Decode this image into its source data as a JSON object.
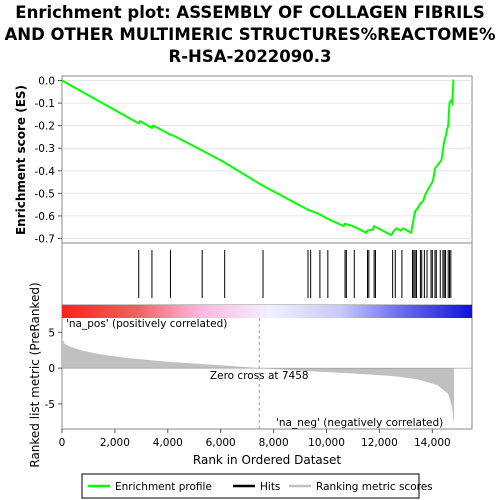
{
  "title_lines": [
    "Enrichment plot: ASSEMBLY OF COLLAGEN FIBRILS",
    "AND OTHER MULTIMERIC STRUCTURES%REACTOME%",
    "R-HSA-2022090.3"
  ],
  "chart_data": {
    "type": "line",
    "es_panel": {
      "ylabel": "Enrichment score (ES)",
      "yticks": [
        "0.0",
        "-0.1",
        "-0.2",
        "-0.3",
        "-0.4",
        "-0.5",
        "-0.6",
        "-0.7"
      ],
      "ylim": [
        -0.72,
        0.02
      ],
      "series_name": "Enrichment profile",
      "color": "#00ff00",
      "points": [
        [
          0,
          0.0
        ],
        [
          2900,
          -0.19
        ],
        [
          2950,
          -0.18
        ],
        [
          3400,
          -0.21
        ],
        [
          3450,
          -0.2
        ],
        [
          4100,
          -0.24
        ],
        [
          4150,
          -0.24
        ],
        [
          5300,
          -0.31
        ],
        [
          6100,
          -0.36
        ],
        [
          7500,
          -0.46
        ],
        [
          9250,
          -0.57
        ],
        [
          9350,
          -0.575
        ],
        [
          9700,
          -0.59
        ],
        [
          10000,
          -0.61
        ],
        [
          10650,
          -0.645
        ],
        [
          10700,
          -0.635
        ],
        [
          11000,
          -0.645
        ],
        [
          11500,
          -0.675
        ],
        [
          11550,
          -0.665
        ],
        [
          11750,
          -0.66
        ],
        [
          11800,
          -0.645
        ],
        [
          12450,
          -0.685
        ],
        [
          12550,
          -0.665
        ],
        [
          12650,
          -0.655
        ],
        [
          12800,
          -0.665
        ],
        [
          12900,
          -0.655
        ],
        [
          13200,
          -0.675
        ],
        [
          13250,
          -0.64
        ],
        [
          13300,
          -0.61
        ],
        [
          13350,
          -0.58
        ],
        [
          13450,
          -0.565
        ],
        [
          13550,
          -0.545
        ],
        [
          13650,
          -0.535
        ],
        [
          13750,
          -0.5
        ],
        [
          13900,
          -0.47
        ],
        [
          14000,
          -0.45
        ],
        [
          14050,
          -0.43
        ],
        [
          14100,
          -0.39
        ],
        [
          14200,
          -0.375
        ],
        [
          14300,
          -0.36
        ],
        [
          14350,
          -0.35
        ],
        [
          14400,
          -0.31
        ],
        [
          14450,
          -0.27
        ],
        [
          14500,
          -0.25
        ],
        [
          14550,
          -0.22
        ],
        [
          14600,
          -0.2
        ],
        [
          14650,
          -0.1
        ],
        [
          14700,
          -0.09
        ],
        [
          14750,
          -0.1
        ],
        [
          14800,
          0.0
        ],
        [
          14820,
          0.0
        ]
      ]
    },
    "hits": [
      2900,
      3400,
      4100,
      5300,
      6150,
      7600,
      9300,
      9400,
      9750,
      10050,
      10700,
      10750,
      11050,
      11550,
      11600,
      11800,
      11850,
      12500,
      12600,
      12850,
      13250,
      13300,
      13350,
      13400,
      13550,
      13600,
      13700,
      13800,
      13950,
      14000,
      14100,
      14150,
      14300,
      14400,
      14450,
      14500,
      14600,
      14650,
      14700
    ],
    "ranking_panel": {
      "ylabel": "Ranked list metric (PreRanked)",
      "yticks": [
        "5",
        "0",
        "-5"
      ],
      "ylim": [
        -8.5,
        7
      ],
      "xlabel": "Rank in Ordered Dataset",
      "xticks": [
        "0",
        "2,000",
        "4,000",
        "6,000",
        "8,000",
        "10,000",
        "12,000",
        "14,000"
      ],
      "xlim": [
        0,
        15500
      ],
      "zero_cross_label": "Zero cross at 7458",
      "zero_cross": 7458,
      "pos_label": "'na_pos' (positively correlated)",
      "neg_label": "'na_neg' (negatively correlated)",
      "n_genes": 14820,
      "metric_profile": [
        [
          0,
          4.2
        ],
        [
          100,
          3.4
        ],
        [
          300,
          3.0
        ],
        [
          800,
          2.4
        ],
        [
          1500,
          1.9
        ],
        [
          2500,
          1.4
        ],
        [
          4000,
          0.9
        ],
        [
          6000,
          0.4
        ],
        [
          7458,
          0.0
        ],
        [
          9000,
          -0.35
        ],
        [
          11000,
          -0.75
        ],
        [
          12500,
          -1.1
        ],
        [
          13500,
          -1.6
        ],
        [
          14200,
          -2.4
        ],
        [
          14600,
          -3.6
        ],
        [
          14750,
          -5.5
        ],
        [
          14820,
          -8.0
        ]
      ]
    },
    "colors": {
      "profile": "#00ff00",
      "pos": "#ff0000",
      "neg": "#0000ff",
      "fill": "#c0c0c0"
    }
  },
  "legend": {
    "items": [
      {
        "label": "Enrichment profile",
        "color": "#00ff00"
      },
      {
        "label": "Hits",
        "color": "#000000"
      },
      {
        "label": "Ranking metric scores",
        "color": "#c0c0c0"
      }
    ]
  }
}
